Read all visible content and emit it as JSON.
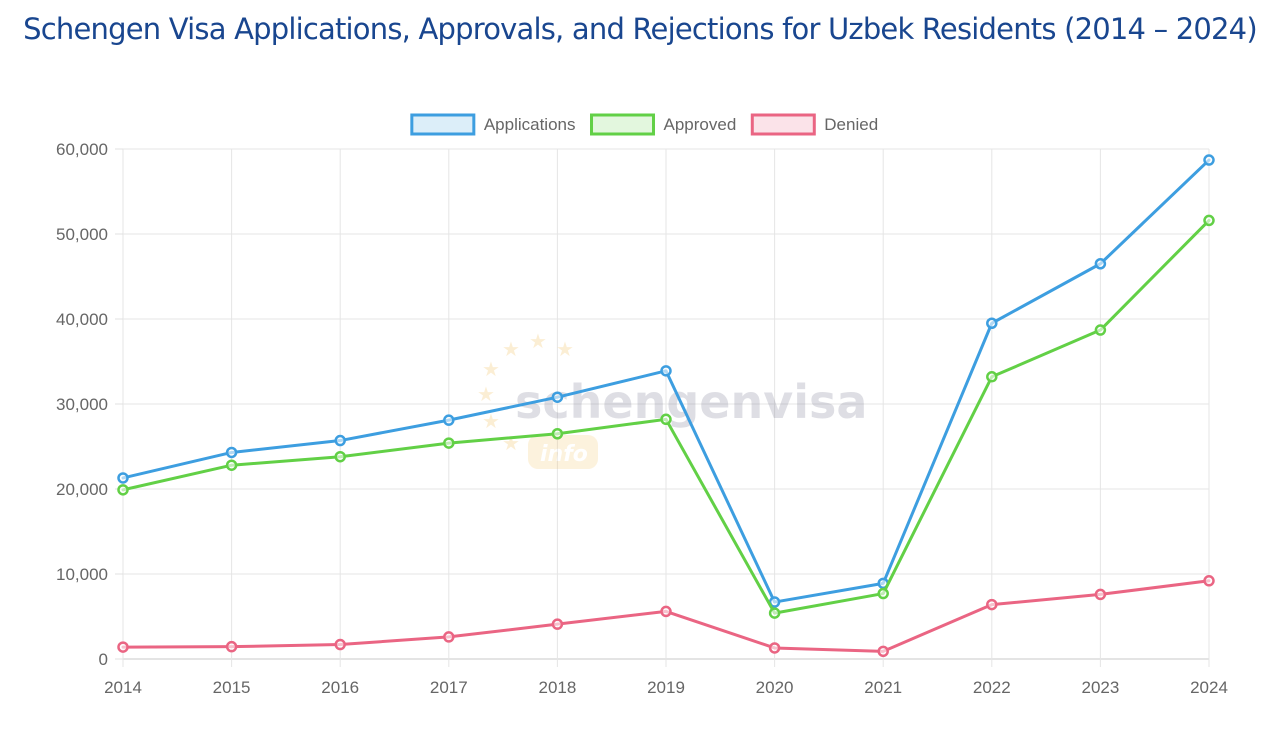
{
  "title": "Schengen Visa Applications, Approvals, and Rejections for Uzbek Residents (2014 – 2024)",
  "watermark": {
    "brand": "schengenvisa",
    "sub": "info"
  },
  "chart_data": {
    "type": "line",
    "title": "Schengen Visa Applications, Approvals, and Rejections for Uzbek Residents (2014 – 2024)",
    "xlabel": "",
    "ylabel": "",
    "x": [
      "2014",
      "2015",
      "2016",
      "2017",
      "2018",
      "2019",
      "2020",
      "2021",
      "2022",
      "2023",
      "2024"
    ],
    "ylim": [
      0,
      60000
    ],
    "yticks": [
      0,
      10000,
      20000,
      30000,
      40000,
      50000,
      60000
    ],
    "ytick_labels": [
      "0",
      "10,000",
      "20,000",
      "30,000",
      "40,000",
      "50,000",
      "60,000"
    ],
    "grid": true,
    "legend_position": "top",
    "series": [
      {
        "name": "Applications",
        "color": "#3d9ee0",
        "values": [
          21300,
          24300,
          25700,
          28100,
          30800,
          33900,
          6700,
          8900,
          39500,
          46500,
          58700
        ]
      },
      {
        "name": "Approved",
        "color": "#62d046",
        "values": [
          19900,
          22800,
          23800,
          25400,
          26500,
          28200,
          5400,
          7700,
          33200,
          38700,
          51600
        ]
      },
      {
        "name": "Denied",
        "color": "#ea6583",
        "values": [
          1400,
          1450,
          1700,
          2600,
          4100,
          5600,
          1300,
          900,
          6400,
          7600,
          9200
        ]
      }
    ]
  }
}
